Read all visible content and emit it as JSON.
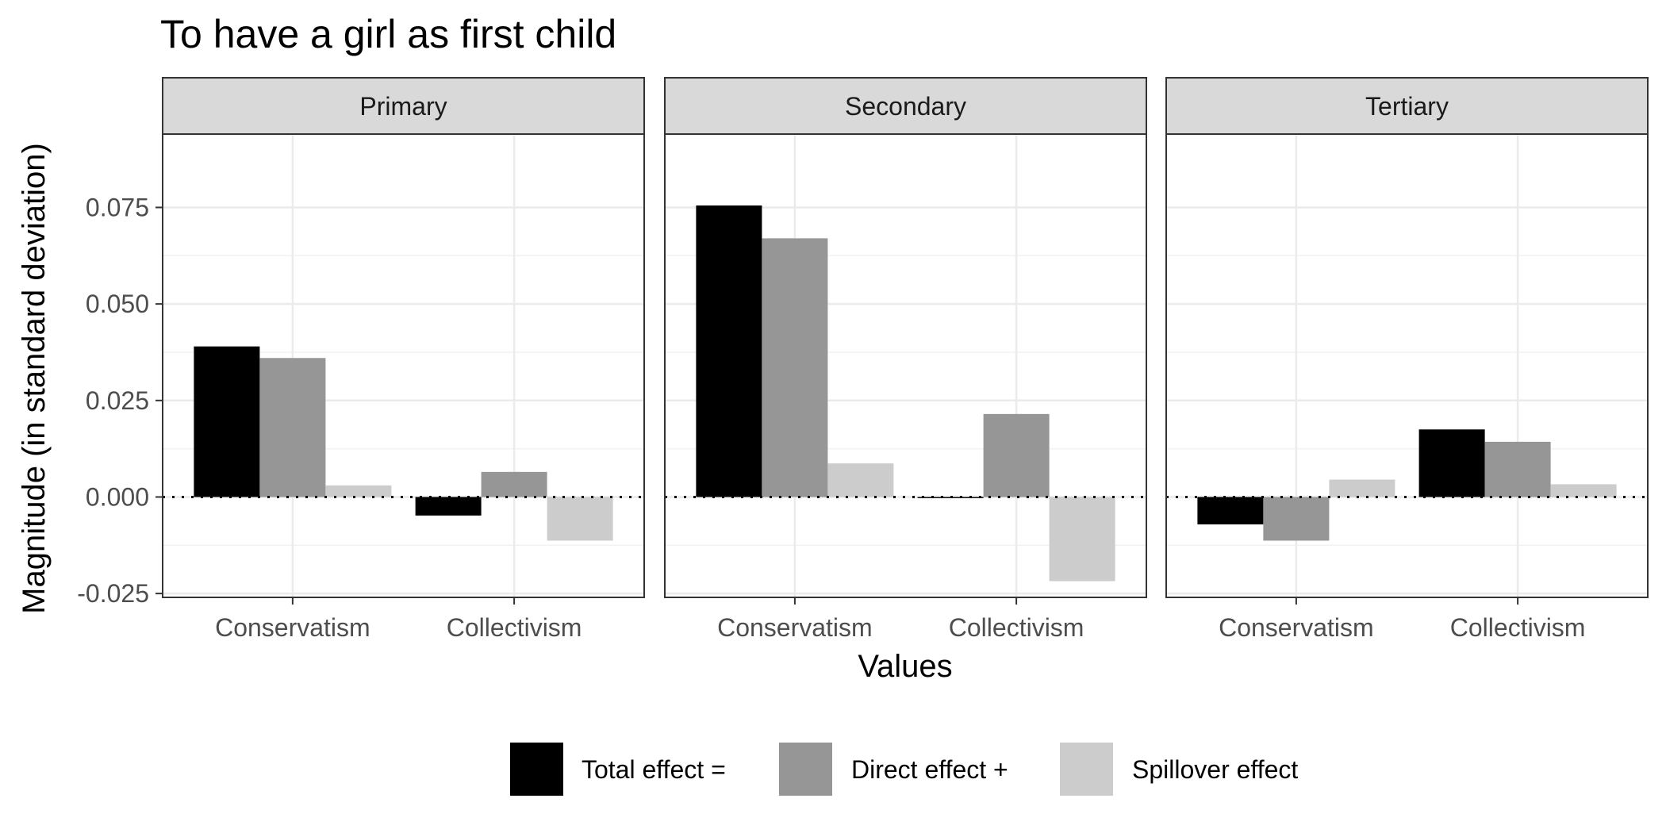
{
  "chart_data": {
    "type": "bar",
    "title": "To have a girl as first child",
    "xlabel": "Values",
    "ylabel": "Magnitude (in standard deviation)",
    "ylim": [
      -0.026,
      0.094
    ],
    "yticks": [
      -0.025,
      0.0,
      0.025,
      0.05,
      0.075
    ],
    "ytick_labels": [
      "-0.025",
      "0.000",
      "0.025",
      "0.050",
      "0.075"
    ],
    "categories": [
      "Conservatism",
      "Collectivism"
    ],
    "grid": true,
    "zero_line": "dotted",
    "legend_position": "bottom",
    "legend": [
      {
        "label": "Total effect =",
        "color": "#000000"
      },
      {
        "label": "Direct effect +",
        "color": "#969696"
      },
      {
        "label": "Spillover effect",
        "color": "#cccccc"
      }
    ],
    "panels": [
      {
        "label": "Primary",
        "series": [
          {
            "values": [
              0.039,
              -0.0048
            ]
          },
          {
            "values": [
              0.036,
              0.0065
            ]
          },
          {
            "values": [
              0.003,
              -0.0113
            ]
          }
        ]
      },
      {
        "label": "Secondary",
        "series": [
          {
            "values": [
              0.0755,
              -0.0003
            ]
          },
          {
            "values": [
              0.067,
              0.0215
            ]
          },
          {
            "values": [
              0.0087,
              -0.0218
            ]
          }
        ]
      },
      {
        "label": "Tertiary",
        "series": [
          {
            "values": [
              -0.0071,
              0.0175
            ]
          },
          {
            "values": [
              -0.0113,
              0.0143
            ]
          },
          {
            "values": [
              0.0045,
              0.0033
            ]
          }
        ]
      }
    ]
  }
}
